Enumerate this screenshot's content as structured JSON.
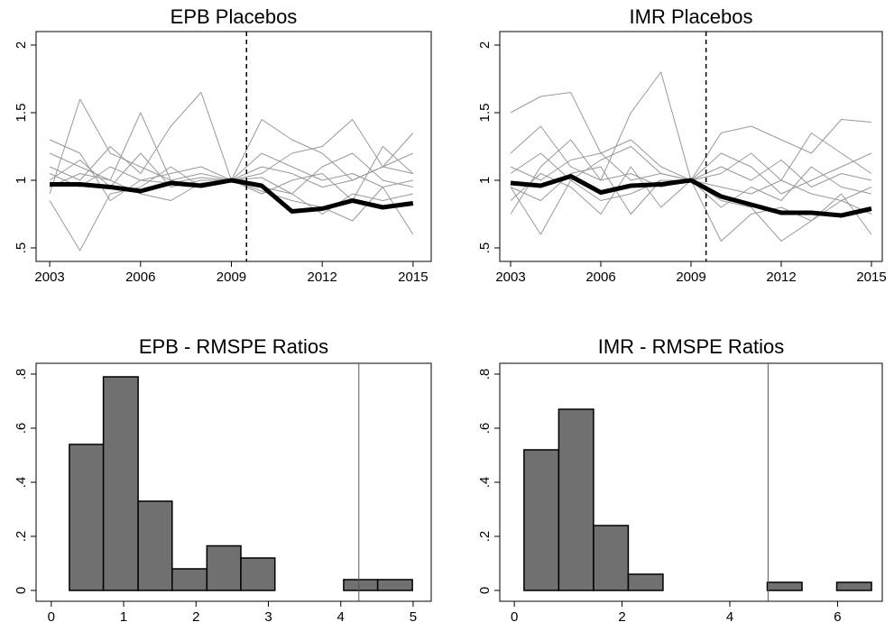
{
  "chart_data": [
    {
      "type": "line",
      "title": "EPB Placebos",
      "x": [
        2003,
        2004,
        2005,
        2006,
        2007,
        2008,
        2009,
        2010,
        2011,
        2012,
        2013,
        2014,
        2015
      ],
      "xlim": [
        2002.55,
        2015.6
      ],
      "xticks": [
        2003,
        2006,
        2009,
        2012,
        2015
      ],
      "ylim": [
        0.4,
        2.1
      ],
      "yticks": [
        {
          "value": 0.5,
          "label": ".5"
        },
        1,
        1.5,
        2
      ],
      "vline": 2009.5,
      "series": [
        {
          "color": "#999999",
          "linewidth": 1,
          "values": [
            1.05,
            0.95,
            1.1,
            1.0,
            0.98,
            1.02,
            1,
            1.1,
            1.05,
            0.95,
            1.0,
            1.1,
            1.05
          ]
        },
        {
          "color": "#999999",
          "linewidth": 1,
          "values": [
            0.9,
            1.6,
            1.2,
            1.1,
            1.0,
            0.95,
            1,
            0.95,
            0.9,
            1.1,
            1.2,
            1.0,
            0.95
          ]
        },
        {
          "color": "#999999",
          "linewidth": 1,
          "values": [
            1.2,
            1.1,
            1.0,
            1.5,
            1.0,
            1.05,
            1,
            1.45,
            1.3,
            1.2,
            1.0,
            1.1,
            1.35
          ]
        },
        {
          "color": "#999999",
          "linewidth": 1,
          "values": [
            0.85,
            0.48,
            0.9,
            0.95,
            1.1,
            0.95,
            1,
            0.92,
            0.85,
            0.8,
            0.7,
            0.95,
            0.6
          ]
        },
        {
          "color": "#999999",
          "linewidth": 1,
          "values": [
            1.1,
            1.0,
            1.25,
            1.05,
            1.4,
            1.65,
            1,
            1.05,
            1.2,
            1.25,
            1.45,
            1.1,
            1.2
          ]
        },
        {
          "color": "#999999",
          "linewidth": 1,
          "values": [
            0.95,
            1.05,
            1.0,
            0.9,
            0.85,
            0.98,
            1,
            1.02,
            0.9,
            0.75,
            0.9,
            0.85,
            0.9
          ]
        },
        {
          "color": "#999999",
          "linewidth": 1,
          "values": [
            1.0,
            1.15,
            0.95,
            1.2,
            0.95,
            1.0,
            1,
            0.9,
            1.0,
            1.05,
            0.85,
            1.25,
            1.05
          ]
        },
        {
          "color": "#999999",
          "linewidth": 1,
          "values": [
            1.3,
            1.2,
            0.85,
            1.0,
            1.05,
            1.1,
            1,
            1.2,
            1.1,
            1.0,
            1.05,
            0.95,
            1.0
          ]
        },
        {
          "color": "#000000",
          "linewidth": 5,
          "values": [
            0.97,
            0.97,
            0.95,
            0.92,
            0.98,
            0.96,
            1.0,
            0.96,
            0.77,
            0.79,
            0.85,
            0.8,
            0.83
          ]
        }
      ]
    },
    {
      "type": "line",
      "title": "IMR Placebos",
      "x": [
        2003,
        2004,
        2005,
        2006,
        2007,
        2008,
        2009,
        2010,
        2011,
        2012,
        2013,
        2014,
        2015
      ],
      "xlim": [
        2002.64,
        2015.36
      ],
      "xticks": [
        2003,
        2006,
        2009,
        2012,
        2015
      ],
      "ylim": [
        0.4,
        2.1
      ],
      "yticks": [
        {
          "value": 0.5,
          "label": ".5"
        },
        1,
        1.5,
        2
      ],
      "vline": 2009.5,
      "series": [
        {
          "color": "#999999",
          "linewidth": 1,
          "values": [
            1.5,
            1.62,
            1.65,
            1.2,
            1.3,
            1.1,
            1,
            1.35,
            1.4,
            1.3,
            1.2,
            1.45,
            1.43
          ]
        },
        {
          "color": "#999999",
          "linewidth": 1,
          "values": [
            0.75,
            1.1,
            1.3,
            1.0,
            1.5,
            1.8,
            1,
            0.55,
            0.75,
            0.8,
            0.7,
            0.9,
            0.6
          ]
        },
        {
          "color": "#999999",
          "linewidth": 1,
          "values": [
            1.2,
            1.4,
            1.1,
            1.0,
            1.05,
            0.95,
            1,
            1.2,
            1.1,
            0.9,
            1.0,
            1.1,
            1.2
          ]
        },
        {
          "color": "#999999",
          "linewidth": 1,
          "values": [
            0.95,
            0.6,
            1.0,
            0.85,
            0.9,
            1.0,
            1,
            0.85,
            0.8,
            0.55,
            0.7,
            0.85,
            0.75
          ]
        },
        {
          "color": "#999999",
          "linewidth": 1,
          "values": [
            1.1,
            1.0,
            1.15,
            1.2,
            1.0,
            1.05,
            1,
            1.05,
            1.2,
            1.0,
            1.35,
            1.2,
            1.05
          ]
        },
        {
          "color": "#999999",
          "linewidth": 1,
          "values": [
            0.85,
            1.05,
            0.95,
            0.75,
            1.1,
            0.8,
            1,
            0.95,
            0.9,
            1.0,
            0.9,
            0.85,
            0.95
          ]
        },
        {
          "color": "#999999",
          "linewidth": 1,
          "values": [
            1.05,
            1.2,
            1.0,
            1.15,
            1.25,
            1.05,
            1,
            1.1,
            1.0,
            1.15,
            0.95,
            1.05,
            1.0
          ]
        },
        {
          "color": "#999999",
          "linewidth": 1,
          "values": [
            0.95,
            0.85,
            1.05,
            1.1,
            0.75,
            1.0,
            1,
            0.8,
            0.95,
            0.85,
            1.1,
            0.95,
            0.9
          ]
        },
        {
          "color": "#000000",
          "linewidth": 5,
          "values": [
            0.98,
            0.96,
            1.03,
            0.91,
            0.96,
            0.97,
            1.0,
            0.88,
            0.82,
            0.76,
            0.76,
            0.74,
            0.79
          ]
        }
      ]
    },
    {
      "type": "histogram",
      "title": "EPB - RMSPE Ratios",
      "bins": [
        0.25,
        0.72,
        1.2,
        1.67,
        2.15,
        2.62,
        3.09,
        3.57,
        4.04,
        4.51,
        4.99
      ],
      "values": [
        0.54,
        0.79,
        0.33,
        0.08,
        0.165,
        0.12,
        0,
        0,
        0.04,
        0.04
      ],
      "color": "#707070",
      "xlim": [
        -0.21,
        5.25
      ],
      "xticks": [
        0,
        1,
        2,
        3,
        4,
        5
      ],
      "ylim": [
        -0.04,
        0.84
      ],
      "yticks": [
        0,
        {
          "value": 0.2,
          "label": ".2"
        },
        {
          "value": 0.4,
          "label": ".4"
        },
        {
          "value": 0.6,
          "label": ".6"
        },
        {
          "value": 0.8,
          "label": ".8"
        }
      ],
      "vline": 4.25
    },
    {
      "type": "histogram",
      "title": "IMR - RMSPE Ratios",
      "bins": [
        0.18,
        0.825,
        1.47,
        2.115,
        2.76,
        3.405,
        4.05,
        4.695,
        5.34,
        5.985,
        6.63
      ],
      "values": [
        0.52,
        0.67,
        0.24,
        0.06,
        0,
        0,
        0,
        0.03,
        0,
        0.03
      ],
      "color": "#707070",
      "xlim": [
        -0.27,
        6.83
      ],
      "xticks": [
        0,
        2,
        4,
        6
      ],
      "ylim": [
        -0.04,
        0.84
      ],
      "yticks": [
        0,
        {
          "value": 0.2,
          "label": ".2"
        },
        {
          "value": 0.4,
          "label": ".4"
        },
        {
          "value": 0.6,
          "label": ".6"
        },
        {
          "value": 0.8,
          "label": ".8"
        }
      ],
      "vline": 4.71
    }
  ]
}
